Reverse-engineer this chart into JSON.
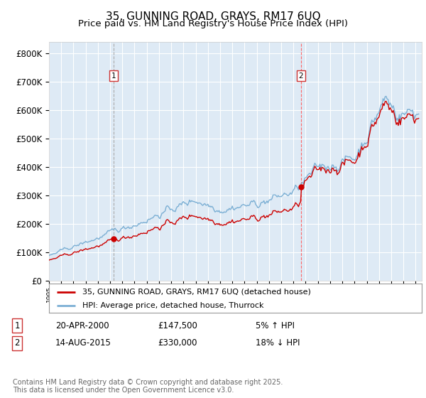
{
  "title": "35, GUNNING ROAD, GRAYS, RM17 6UQ",
  "subtitle": "Price paid vs. HM Land Registry's House Price Index (HPI)",
  "ylabel_ticks": [
    "£0",
    "£100K",
    "£200K",
    "£300K",
    "£400K",
    "£500K",
    "£600K",
    "£700K",
    "£800K"
  ],
  "ytick_values": [
    0,
    100000,
    200000,
    300000,
    400000,
    500000,
    600000,
    700000,
    800000
  ],
  "ylim": [
    0,
    840000
  ],
  "xlim_start": 1995.0,
  "xlim_end": 2025.5,
  "plot_bg": "#deeaf5",
  "grid_color": "#ffffff",
  "line1_color": "#cc0000",
  "line2_color": "#7bafd4",
  "vline1_color": "#aaaaaa",
  "vline2_color": "#ff6666",
  "marker1_date_year": 2000.3,
  "marker2_date_year": 2015.62,
  "marker1_price": 147500,
  "marker2_price": 330000,
  "legend_line1": "35, GUNNING ROAD, GRAYS, RM17 6UQ (detached house)",
  "legend_line2": "HPI: Average price, detached house, Thurrock",
  "table_rows": [
    [
      "1",
      "20-APR-2000",
      "£147,500",
      "5% ↑ HPI"
    ],
    [
      "2",
      "14-AUG-2015",
      "£330,000",
      "18% ↓ HPI"
    ]
  ],
  "footer": "Contains HM Land Registry data © Crown copyright and database right 2025.\nThis data is licensed under the Open Government Licence v3.0.",
  "title_fontsize": 11,
  "subtitle_fontsize": 9.5,
  "axis_fontsize": 8.5,
  "legend_fontsize": 8,
  "table_fontsize": 8.5,
  "footer_fontsize": 7
}
